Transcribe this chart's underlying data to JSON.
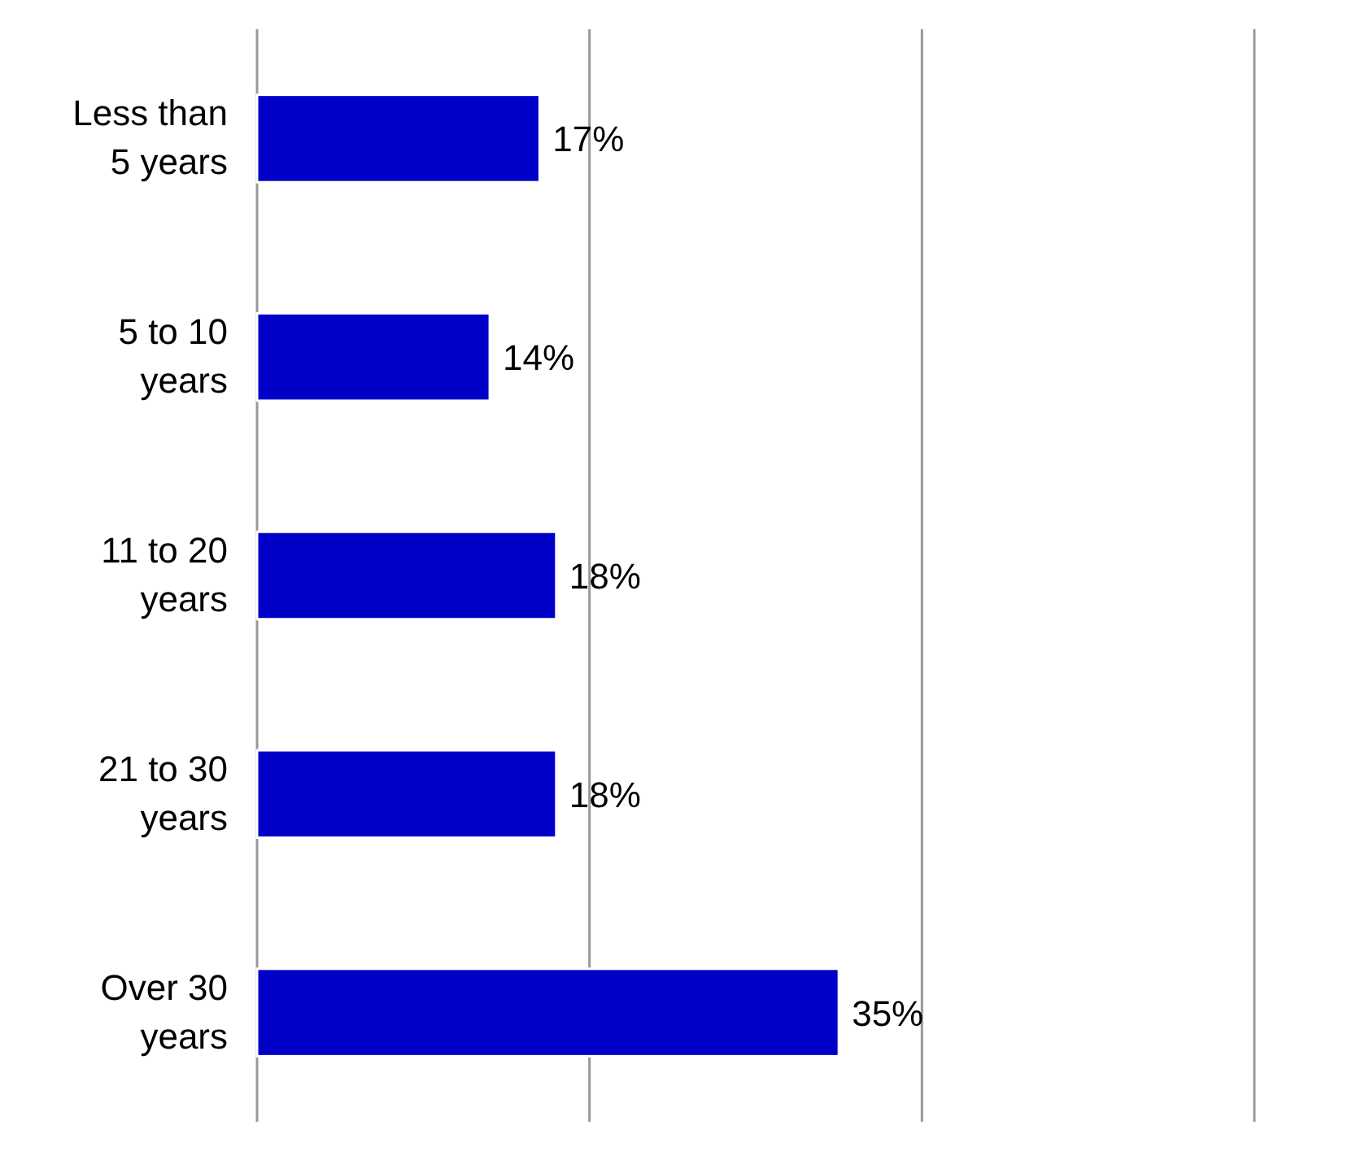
{
  "chart_data": {
    "type": "bar",
    "orientation": "horizontal",
    "categories": [
      "Less than 5 years",
      "5 to 10 years",
      "11 to 20 years",
      "21 to 30 years",
      "Over 30 years"
    ],
    "values": [
      17,
      14,
      18,
      18,
      35
    ],
    "color": "#0000c8",
    "data_labels": true,
    "value_labels": [
      "17%",
      "14%",
      "18%",
      "18%",
      "35%"
    ],
    "xlim": [
      0,
      60
    ],
    "xticks": [
      {
        "value": 0,
        "label": null
      },
      {
        "value": 20,
        "label": null
      },
      {
        "value": 40,
        "label": null
      },
      {
        "value": 60,
        "label": null
      }
    ],
    "grid": "x",
    "tick_labels": "y"
  }
}
